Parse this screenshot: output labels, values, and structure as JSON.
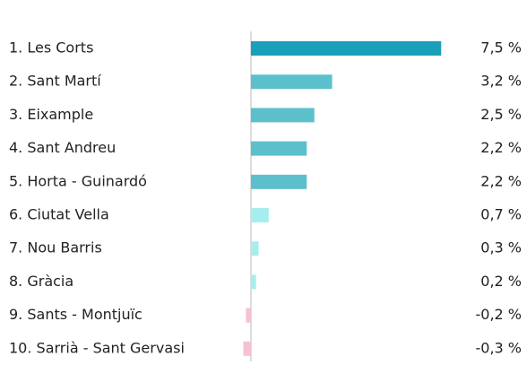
{
  "chart_data": {
    "type": "bar",
    "orientation": "horizontal",
    "categories": [
      "1. Les Corts",
      "2. Sant Martí",
      "3. Eixample",
      "4. Sant Andreu",
      "5. Horta - Guinardó",
      "6. Ciutat Vella",
      "7. Nou Barris",
      "8. Gràcia",
      "9. Sants - Montjuïc",
      "10. Sarrià - Sant Gervasi"
    ],
    "values": [
      7.5,
      3.2,
      2.5,
      2.2,
      2.2,
      0.7,
      0.3,
      0.2,
      -0.2,
      -0.3
    ],
    "value_labels": [
      "7,5 %",
      "3,2 %",
      "2,5 %",
      "2,2 %",
      "2,2 %",
      "0,7 %",
      "0,3 %",
      "0,2 %",
      "-0,2 %",
      "-0,3 %"
    ],
    "colors": [
      "#1a9fb8",
      "#5bc0cc",
      "#5bc0cc",
      "#5bc0cc",
      "#5bc0cc",
      "#a6eeee",
      "#a6eeee",
      "#a6eeee",
      "#f5c2d3",
      "#f5c2d3"
    ]
  }
}
